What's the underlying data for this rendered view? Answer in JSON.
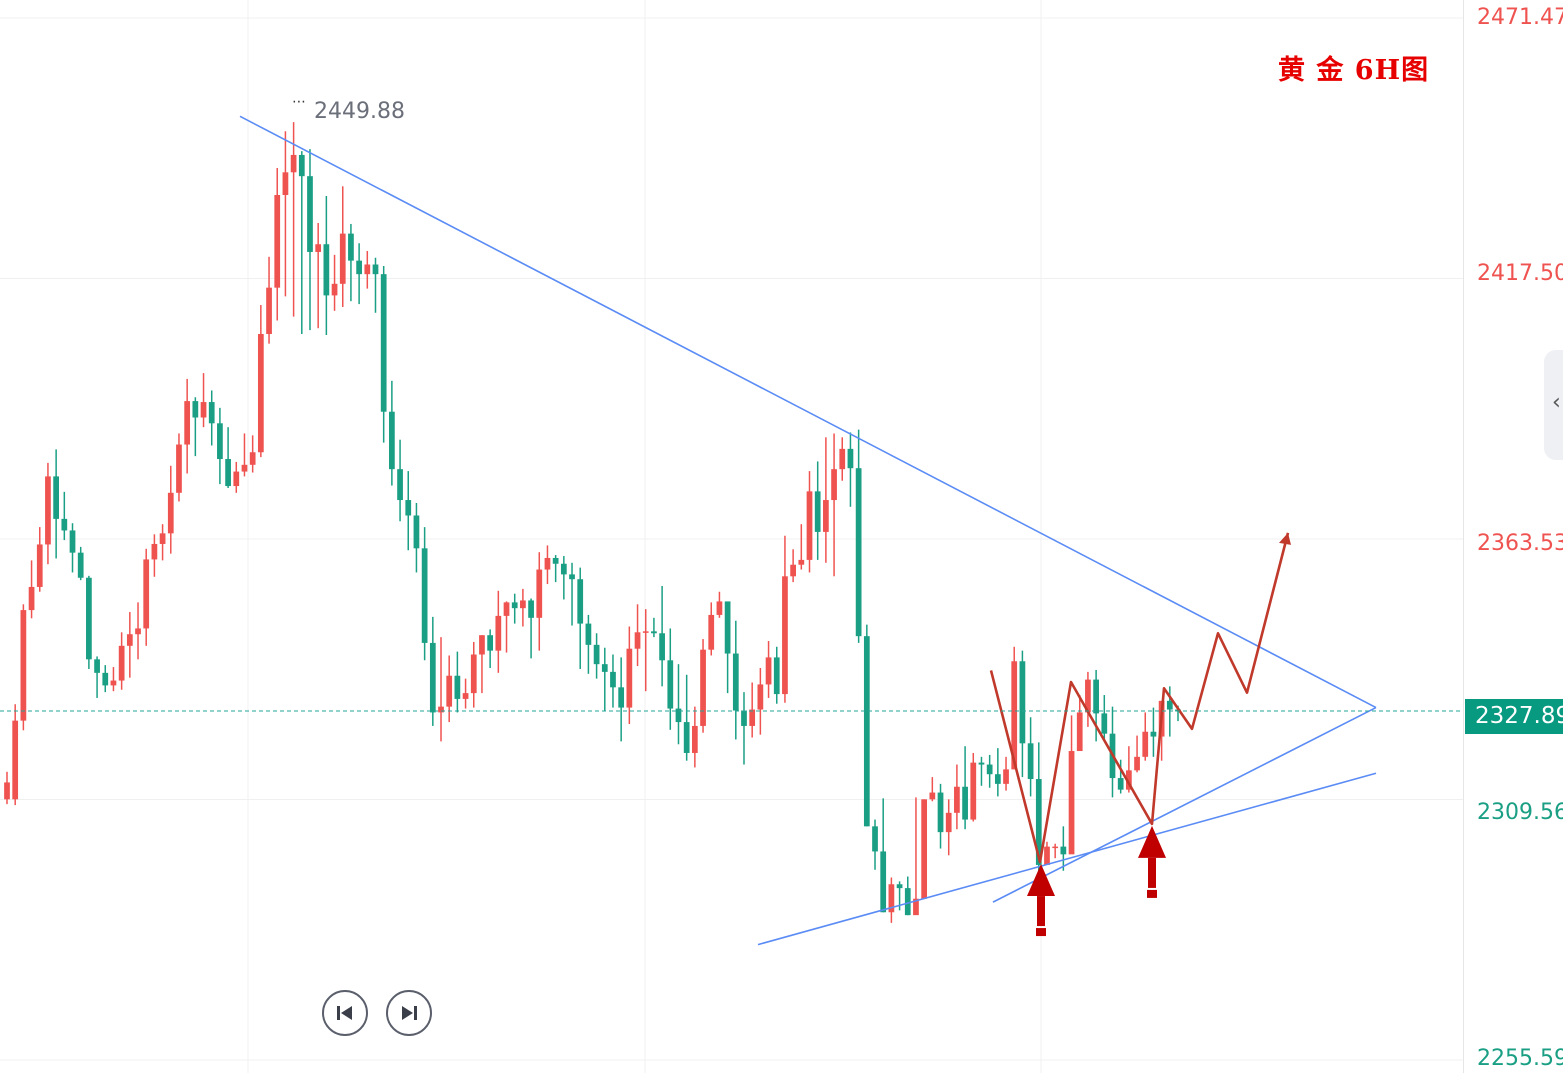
{
  "chart_title": "黄 金 6H图",
  "high_annotation": "2449.88",
  "current_price": "2327.89",
  "colors": {
    "up": "#ef5350",
    "down": "#1a9f84",
    "trendline": "#5b8cf5",
    "projection": "#c0392b",
    "arrow": "#c00000",
    "badge": "#089981",
    "grid": "#f0f0f0"
  },
  "icons": {
    "rewind": "skip-to-start-icon",
    "forward": "skip-to-end-icon",
    "collapse": "chevron-left-icon"
  },
  "chart_data": {
    "type": "candlestick",
    "title": "黄 金 6H图",
    "instrument": "黄金",
    "timeframe": "6H",
    "y_axis": {
      "ticks": [
        "2471.47",
        "2417.50",
        "2363.53",
        "2309.56",
        "2255.59"
      ],
      "tick_values": [
        2471.47,
        2417.5,
        2363.53,
        2309.56,
        2255.59
      ],
      "ylim": [
        2255.59,
        2471.47
      ],
      "position": "right"
    },
    "x_axis": {
      "ticks": [],
      "label": ""
    },
    "grid": true,
    "current_price": 2327.89,
    "annotated_high": 2449.88,
    "candles": [
      [
        2309.6,
        2313.1,
        2308.6,
        2315.3
      ],
      [
        2309.6,
        2325.9,
        2308.4,
        2329.3
      ],
      [
        2325.9,
        2348.8,
        2323.9,
        2350.0
      ],
      [
        2348.8,
        2353.6,
        2347.1,
        2359.1
      ],
      [
        2353.6,
        2362.4,
        2352.6,
        2366.0
      ],
      [
        2362.4,
        2376.5,
        2358.3,
        2379.3
      ],
      [
        2376.5,
        2367.7,
        2359.5,
        2382.1
      ],
      [
        2367.7,
        2365.3,
        2363.3,
        2373.3
      ],
      [
        2365.3,
        2360.7,
        2356.6,
        2366.8
      ],
      [
        2360.7,
        2355.5,
        2355.0,
        2361.9
      ],
      [
        2355.5,
        2338.6,
        2336.6,
        2355.9
      ],
      [
        2338.6,
        2335.8,
        2330.6,
        2339.2
      ],
      [
        2335.8,
        2333.2,
        2331.8,
        2337.4
      ],
      [
        2333.2,
        2334.2,
        2332.0,
        2337.0
      ],
      [
        2334.2,
        2341.4,
        2332.3,
        2344.2
      ],
      [
        2341.4,
        2343.8,
        2334.8,
        2348.4
      ],
      [
        2343.8,
        2345.0,
        2338.6,
        2350.4
      ],
      [
        2345.0,
        2359.3,
        2341.4,
        2361.5
      ],
      [
        2359.3,
        2362.5,
        2355.7,
        2364.5
      ],
      [
        2362.5,
        2364.7,
        2359.1,
        2366.6
      ],
      [
        2364.7,
        2373.1,
        2360.5,
        2378.7
      ],
      [
        2373.1,
        2383.1,
        2371.3,
        2385.4
      ],
      [
        2383.1,
        2392.1,
        2377.1,
        2396.7
      ],
      [
        2392.1,
        2388.7,
        2380.7,
        2392.9
      ],
      [
        2388.7,
        2391.9,
        2386.7,
        2397.9
      ],
      [
        2391.9,
        2387.5,
        2382.9,
        2394.3
      ],
      [
        2387.5,
        2380.1,
        2374.9,
        2390.7
      ],
      [
        2380.1,
        2374.5,
        2374.1,
        2386.7
      ],
      [
        2374.5,
        2377.5,
        2373.1,
        2379.5
      ],
      [
        2377.5,
        2378.9,
        2376.5,
        2385.4
      ],
      [
        2378.9,
        2381.5,
        2377.3,
        2385.0
      ],
      [
        2381.5,
        2406.0,
        2380.5,
        2412.0
      ],
      [
        2406.0,
        2415.6,
        2404.0,
        2422.0
      ],
      [
        2415.6,
        2434.8,
        2408.8,
        2440.4
      ],
      [
        2434.8,
        2439.5,
        2413.8,
        2448.0
      ],
      [
        2439.5,
        2443.1,
        2409.6,
        2449.9
      ],
      [
        2443.1,
        2438.7,
        2406.0,
        2443.9
      ],
      [
        2438.7,
        2423.0,
        2406.8,
        2444.3
      ],
      [
        2423.0,
        2424.6,
        2407.2,
        2429.0
      ],
      [
        2424.6,
        2414.0,
        2405.8,
        2434.6
      ],
      [
        2414.0,
        2416.4,
        2410.8,
        2422.4
      ],
      [
        2416.4,
        2426.8,
        2411.6,
        2436.6
      ],
      [
        2426.8,
        2421.2,
        2412.8,
        2428.8
      ],
      [
        2421.2,
        2418.4,
        2412.2,
        2424.8
      ],
      [
        2418.4,
        2420.4,
        2415.4,
        2423.2
      ],
      [
        2420.4,
        2418.4,
        2410.4,
        2421.8
      ],
      [
        2418.4,
        2389.9,
        2383.5,
        2420.1
      ],
      [
        2389.9,
        2378.0,
        2374.6,
        2396.3
      ],
      [
        2378.0,
        2371.6,
        2367.2,
        2384.1
      ],
      [
        2371.6,
        2368.4,
        2361.2,
        2377.6
      ],
      [
        2368.4,
        2361.6,
        2356.6,
        2371.0
      ],
      [
        2361.6,
        2342.0,
        2338.4,
        2366.0
      ],
      [
        2342.0,
        2327.6,
        2324.8,
        2347.4
      ],
      [
        2327.6,
        2328.8,
        2321.6,
        2343.2
      ],
      [
        2328.8,
        2335.2,
        2325.6,
        2339.4
      ],
      [
        2335.2,
        2330.4,
        2327.6,
        2340.2
      ],
      [
        2330.4,
        2331.6,
        2328.4,
        2334.6
      ],
      [
        2331.6,
        2339.6,
        2328.6,
        2342.2
      ],
      [
        2339.6,
        2343.6,
        2331.6,
        2343.6
      ],
      [
        2343.6,
        2340.4,
        2336.8,
        2344.8
      ],
      [
        2340.4,
        2347.6,
        2335.8,
        2352.8
      ],
      [
        2347.6,
        2350.4,
        2340.0,
        2350.6
      ],
      [
        2350.4,
        2349.2,
        2346.0,
        2352.2
      ],
      [
        2349.2,
        2350.8,
        2345.4,
        2353.2
      ],
      [
        2350.8,
        2347.2,
        2338.8,
        2351.2
      ],
      [
        2347.2,
        2357.2,
        2340.4,
        2360.8
      ],
      [
        2357.2,
        2359.6,
        2354.2,
        2362.2
      ],
      [
        2359.6,
        2358.4,
        2354.6,
        2360.2
      ],
      [
        2358.4,
        2356.2,
        2351.0,
        2360.0
      ],
      [
        2356.2,
        2355.2,
        2345.6,
        2358.6
      ],
      [
        2355.2,
        2346.0,
        2336.6,
        2357.6
      ],
      [
        2346.0,
        2341.6,
        2335.6,
        2347.8
      ],
      [
        2341.6,
        2337.6,
        2334.6,
        2344.0
      ],
      [
        2337.6,
        2336.0,
        2328.0,
        2341.0
      ],
      [
        2336.0,
        2332.8,
        2328.6,
        2339.6
      ],
      [
        2332.8,
        2328.6,
        2321.6,
        2339.0
      ],
      [
        2328.6,
        2340.8,
        2325.2,
        2345.4
      ],
      [
        2340.8,
        2344.2,
        2337.2,
        2350.0
      ],
      [
        2344.2,
        2344.4,
        2332.0,
        2349.0
      ],
      [
        2344.4,
        2344.0,
        2343.2,
        2347.2
      ],
      [
        2344.0,
        2338.4,
        2333.0,
        2353.8
      ],
      [
        2338.4,
        2328.4,
        2324.0,
        2345.0
      ],
      [
        2328.4,
        2325.6,
        2321.0,
        2337.6
      ],
      [
        2325.6,
        2319.2,
        2317.6,
        2335.4
      ],
      [
        2319.2,
        2324.8,
        2316.2,
        2328.8
      ],
      [
        2324.8,
        2340.6,
        2323.4,
        2342.8
      ],
      [
        2340.6,
        2347.8,
        2339.4,
        2350.4
      ],
      [
        2347.8,
        2350.6,
        2347.2,
        2352.6
      ],
      [
        2350.6,
        2339.8,
        2331.6,
        2349.8
      ],
      [
        2339.8,
        2328.0,
        2322.0,
        2346.6
      ],
      [
        2328.0,
        2324.8,
        2316.8,
        2331.8
      ],
      [
        2324.8,
        2328.2,
        2322.4,
        2333.8
      ],
      [
        2328.2,
        2333.4,
        2323.0,
        2336.8
      ],
      [
        2333.4,
        2339.0,
        2330.6,
        2342.4
      ],
      [
        2339.0,
        2331.4,
        2329.4,
        2341.2
      ],
      [
        2331.4,
        2355.8,
        2329.6,
        2364.2
      ],
      [
        2355.8,
        2358.2,
        2354.6,
        2361.4
      ],
      [
        2358.2,
        2359.2,
        2357.2,
        2366.6
      ],
      [
        2359.2,
        2373.4,
        2356.6,
        2377.6
      ],
      [
        2373.4,
        2365.0,
        2359.2,
        2379.6
      ],
      [
        2365.0,
        2371.6,
        2358.6,
        2384.6
      ],
      [
        2371.6,
        2378.0,
        2355.8,
        2385.4
      ],
      [
        2378.0,
        2382.2,
        2375.6,
        2384.6
      ],
      [
        2382.2,
        2378.2,
        2370.2,
        2385.6
      ],
      [
        2378.2,
        2343.4,
        2342.0,
        2386.2
      ],
      [
        2343.4,
        2304.0,
        2304.0,
        2345.8
      ],
      [
        2304.0,
        2298.8,
        2295.0,
        2305.4
      ],
      [
        2298.8,
        2286.2,
        2286.2,
        2309.8
      ],
      [
        2286.2,
        2292.0,
        2284.0,
        2293.4
      ],
      [
        2292.0,
        2291.2,
        2286.6,
        2292.6
      ],
      [
        2291.2,
        2285.6,
        2285.6,
        2293.6
      ],
      [
        2285.6,
        2289.0,
        2286.6,
        2310.0
      ],
      [
        2289.0,
        2309.6,
        2289.0,
        2309.6
      ],
      [
        2309.6,
        2311.0,
        2309.2,
        2314.2
      ],
      [
        2311.0,
        2302.8,
        2299.4,
        2312.8
      ],
      [
        2302.8,
        2306.8,
        2298.0,
        2309.6
      ],
      [
        2306.8,
        2312.2,
        2303.4,
        2316.8
      ],
      [
        2312.2,
        2305.4,
        2303.4,
        2320.6
      ],
      [
        2305.4,
        2317.2,
        2305.0,
        2319.2
      ],
      [
        2317.2,
        2316.8,
        2312.4,
        2318.4
      ],
      [
        2316.8,
        2314.8,
        2312.0,
        2318.8
      ],
      [
        2314.8,
        2312.8,
        2310.2,
        2320.2
      ],
      [
        2312.8,
        2315.8,
        2311.4,
        2318.4
      ],
      [
        2315.8,
        2338.2,
        2315.8,
        2341.2
      ],
      [
        2338.2,
        2321.2,
        2314.2,
        2340.4
      ],
      [
        2321.2,
        2313.8,
        2310.2,
        2326.6
      ],
      [
        2313.8,
        2296.0,
        2294.4,
        2321.4
      ],
      [
        2296.0,
        2299.8,
        2296.8,
        2300.8
      ],
      [
        2299.8,
        2299.8,
        2297.4,
        2300.4
      ],
      [
        2299.8,
        2298.2,
        2294.8,
        2304.0
      ],
      [
        2298.2,
        2319.6,
        2298.6,
        2327.0
      ],
      [
        2319.6,
        2327.6,
        2320.2,
        2331.2
      ],
      [
        2327.6,
        2334.4,
        2324.6,
        2336.0
      ],
      [
        2334.4,
        2327.4,
        2321.6,
        2336.4
      ],
      [
        2327.4,
        2323.2,
        2321.6,
        2331.2
      ],
      [
        2323.2,
        2314.0,
        2310.0,
        2328.8
      ],
      [
        2314.0,
        2311.6,
        2310.8,
        2317.8
      ],
      [
        2311.6,
        2315.6,
        2311.0,
        2320.6
      ],
      [
        2315.6,
        2318.4,
        2315.2,
        2322.8
      ],
      [
        2318.4,
        2323.6,
        2317.6,
        2327.6
      ],
      [
        2323.6,
        2322.6,
        2318.4,
        2328.6
      ],
      [
        2322.6,
        2330.0,
        2317.6,
        2330.0
      ],
      [
        2330.0,
        2328.2,
        2322.6,
        2333.0
      ],
      [
        2328.2,
        2327.8,
        2325.8,
        2329.0
      ]
    ],
    "trendlines": [
      {
        "name": "upper",
        "from": [
          0,
          2451.1
        ],
        "to": [
          1,
          2328.6
        ]
      },
      {
        "name": "lower",
        "from": [
          0,
          2279.5
        ],
        "to": [
          1,
          2315.0
        ]
      },
      {
        "name": "lower-steep",
        "from": [
          0,
          2288.3
        ],
        "to": [
          1,
          2328.6
        ]
      }
    ],
    "projection_path": [
      2336.3,
      2296.6,
      2333.9,
      2304.5,
      2332.6,
      2324.2,
      2344.0,
      2331.7,
      2364.8
    ],
    "support_arrows": [
      2296.6,
      2304.5
    ]
  }
}
